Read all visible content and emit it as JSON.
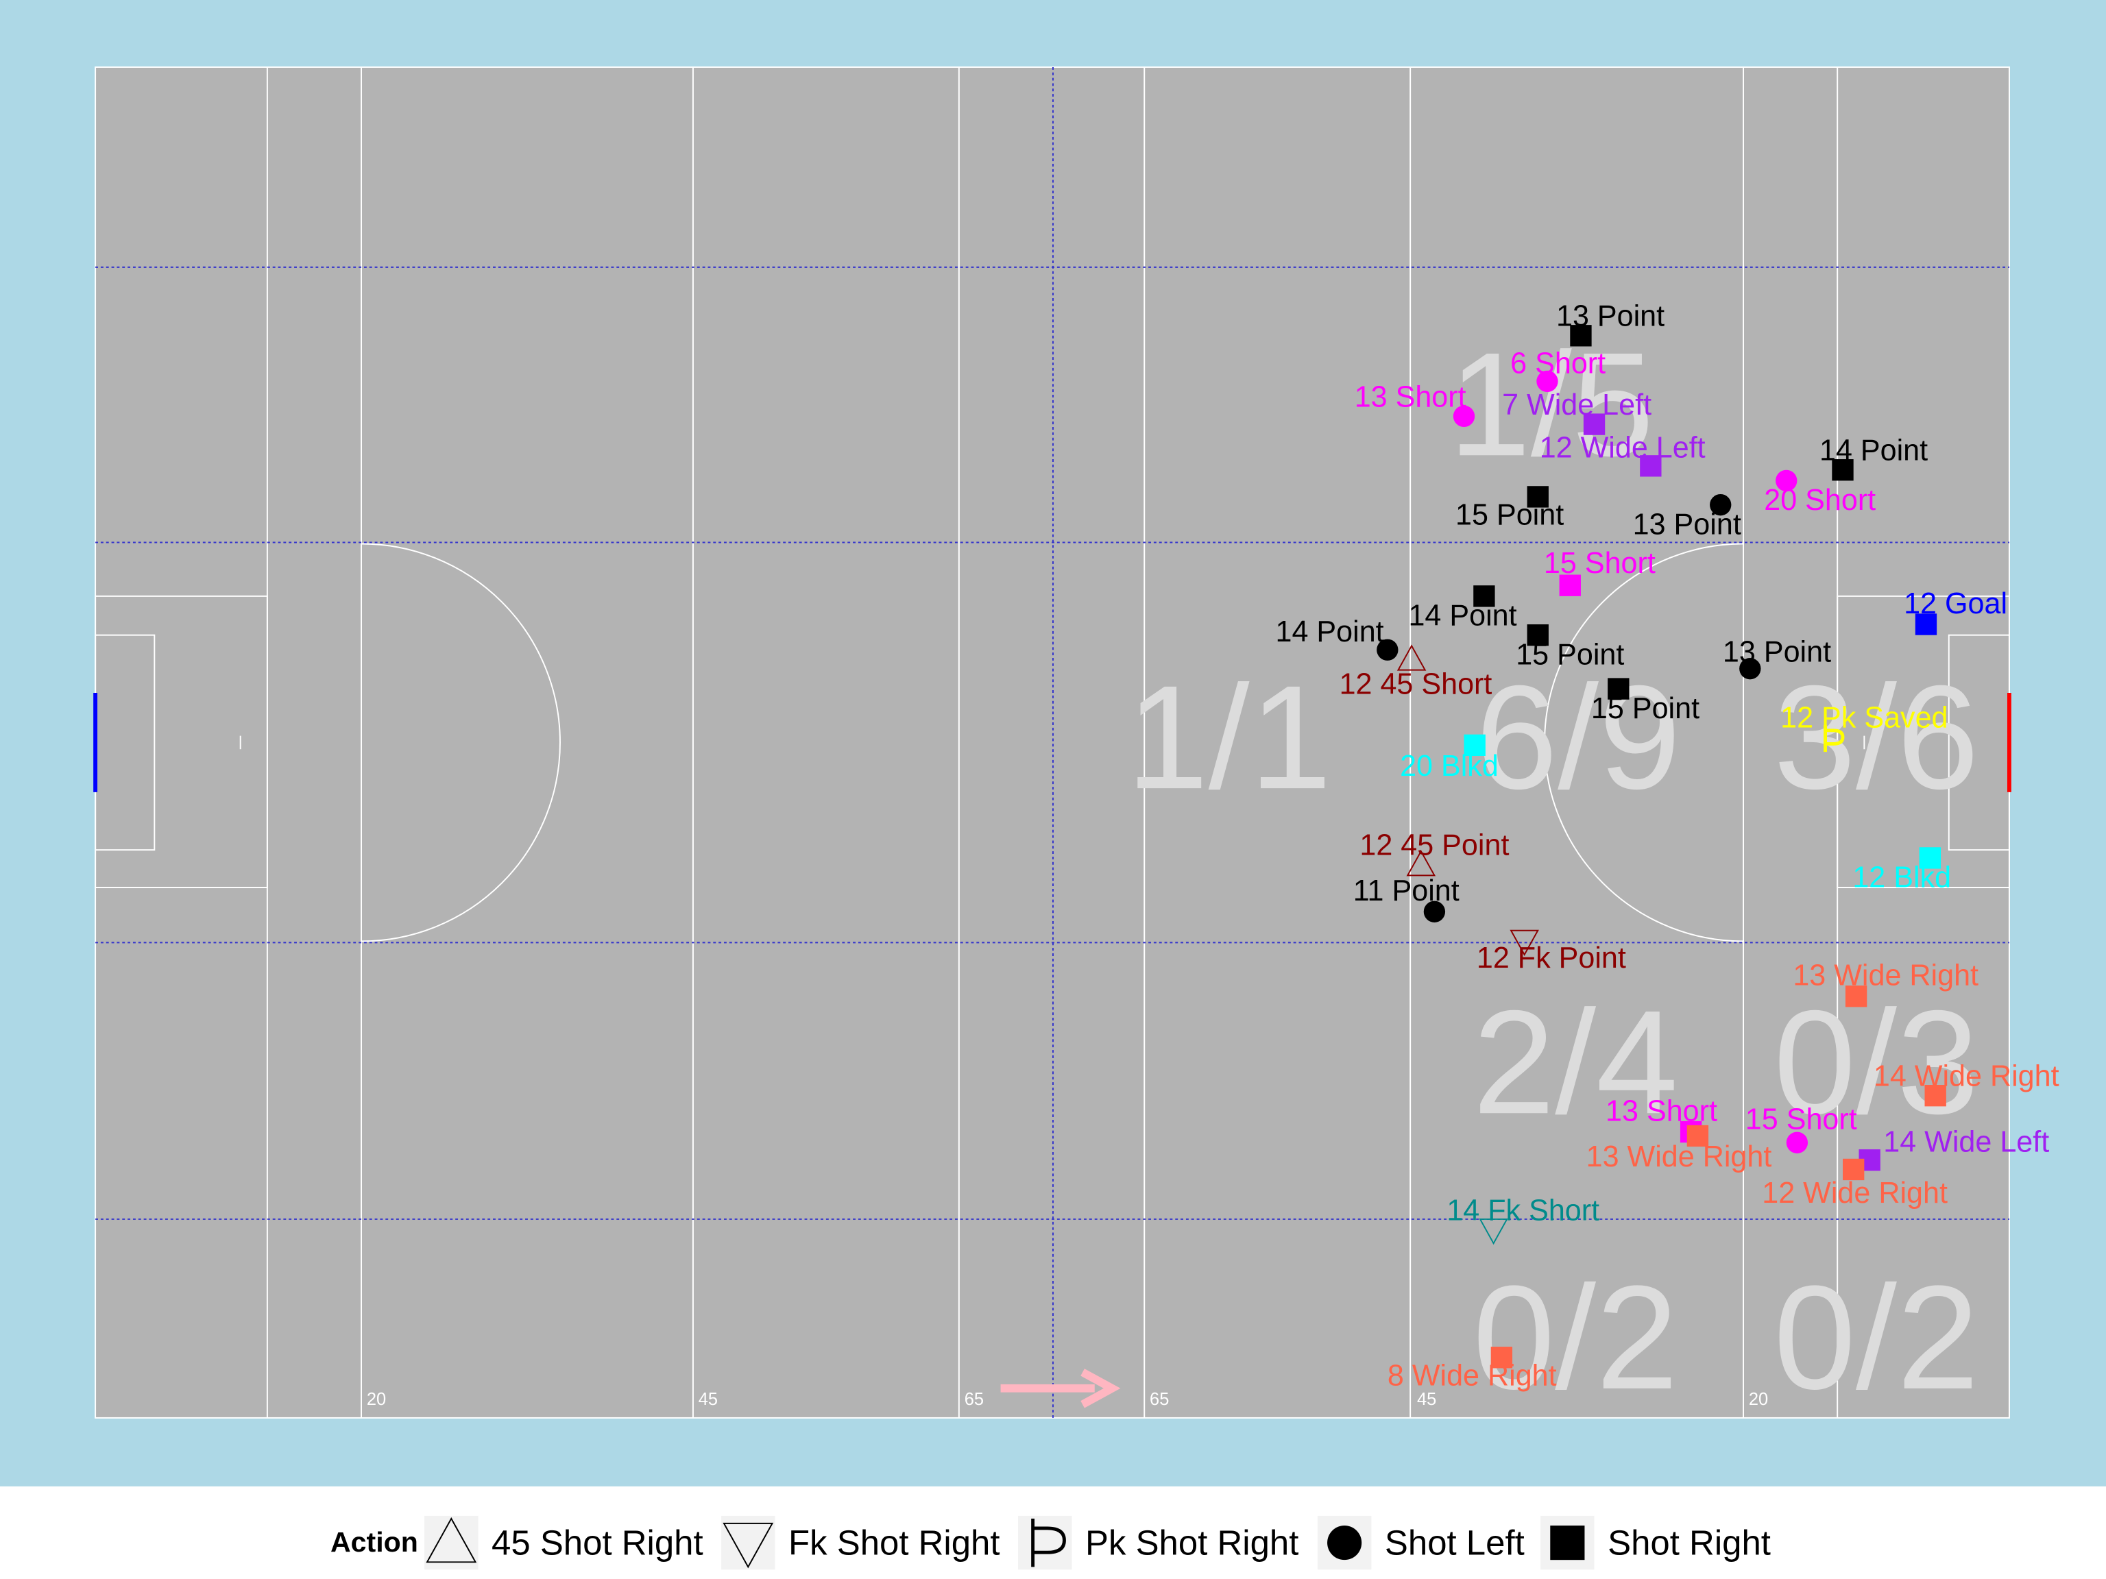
{
  "pitch_labels": [
    "20",
    "45",
    "65",
    "65",
    "45",
    "20"
  ],
  "zone_stats": [
    "1/5",
    "1/1",
    "6/9",
    "3/6",
    "2/4",
    "0/3",
    "0/2",
    "0/2"
  ],
  "shots": [
    {
      "label": "13 Point",
      "action": "Shot Right",
      "color": "#000000"
    },
    {
      "label": "6 Short",
      "action": "Shot Left",
      "color": "#ff00ff"
    },
    {
      "label": "13 Short",
      "action": "Shot Left",
      "color": "#ff00ff"
    },
    {
      "label": "7 Wide Left",
      "action": "Shot Right",
      "color": "#a020f0"
    },
    {
      "label": "12 Wide Left",
      "action": "Shot Right",
      "color": "#a020f0"
    },
    {
      "label": "14 Point",
      "action": "Shot Right",
      "color": "#000000"
    },
    {
      "label": "20 Short",
      "action": "Shot Left",
      "color": "#ff00ff"
    },
    {
      "label": "15 Point",
      "action": "Shot Right",
      "color": "#000000"
    },
    {
      "label": "13 Point",
      "action": "Shot Left",
      "color": "#000000"
    },
    {
      "label": "15 Short",
      "action": "Shot Right",
      "color": "#ff00ff"
    },
    {
      "label": "12 Goal",
      "action": "Shot Right",
      "color": "#0000ff"
    },
    {
      "label": "14 Point",
      "action": "Shot Right",
      "color": "#000000"
    },
    {
      "label": "14 Point",
      "action": "Shot Left",
      "color": "#000000"
    },
    {
      "label": "15 Point",
      "action": "Shot Right",
      "color": "#000000"
    },
    {
      "label": "13 Point",
      "action": "Shot Left",
      "color": "#000000"
    },
    {
      "label": "12 45 Short",
      "action": "45 Shot Right",
      "color": "#8b0000"
    },
    {
      "label": "15 Point",
      "action": "Shot Right",
      "color": "#000000"
    },
    {
      "label": "12 Pk Saved",
      "action": "Pk Shot Right",
      "color": "#ffff00"
    },
    {
      "label": "20 Blkd",
      "action": "Shot Right",
      "color": "#00ffff"
    },
    {
      "label": "12 45 Point",
      "action": "45 Shot Right",
      "color": "#8b0000"
    },
    {
      "label": "12 Blkd",
      "action": "Shot Right",
      "color": "#00ffff"
    },
    {
      "label": "11 Point",
      "action": "Shot Left",
      "color": "#000000"
    },
    {
      "label": "12 Fk Point",
      "action": "Fk Shot Right",
      "color": "#8b0000"
    },
    {
      "label": "13 Wide Right",
      "action": "Shot Right",
      "color": "#ff6347"
    },
    {
      "label": "14 Wide Right",
      "action": "Shot Right",
      "color": "#ff6347"
    },
    {
      "label": "13 Short",
      "action": "Shot Right",
      "color": "#ff00ff"
    },
    {
      "label": "13 Wide Right",
      "action": "Shot Right",
      "color": "#ff6347"
    },
    {
      "label": "15 Short",
      "action": "Shot Left",
      "color": "#ff00ff"
    },
    {
      "label": "14 Wide Left",
      "action": "Shot Right",
      "color": "#a020f0"
    },
    {
      "label": "12 Wide Right",
      "action": "Shot Right",
      "color": "#ff6347"
    },
    {
      "label": "14 Fk Short",
      "action": "Fk Shot Right",
      "color": "#008b8b"
    },
    {
      "label": "8 Wide Right",
      "action": "Shot Right",
      "color": "#ff6347"
    }
  ],
  "legend": {
    "title": "Action",
    "items": [
      "45 Shot Right",
      "Fk Shot Right",
      "Pk Shot Right",
      "Shot Left",
      "Shot Right"
    ]
  }
}
